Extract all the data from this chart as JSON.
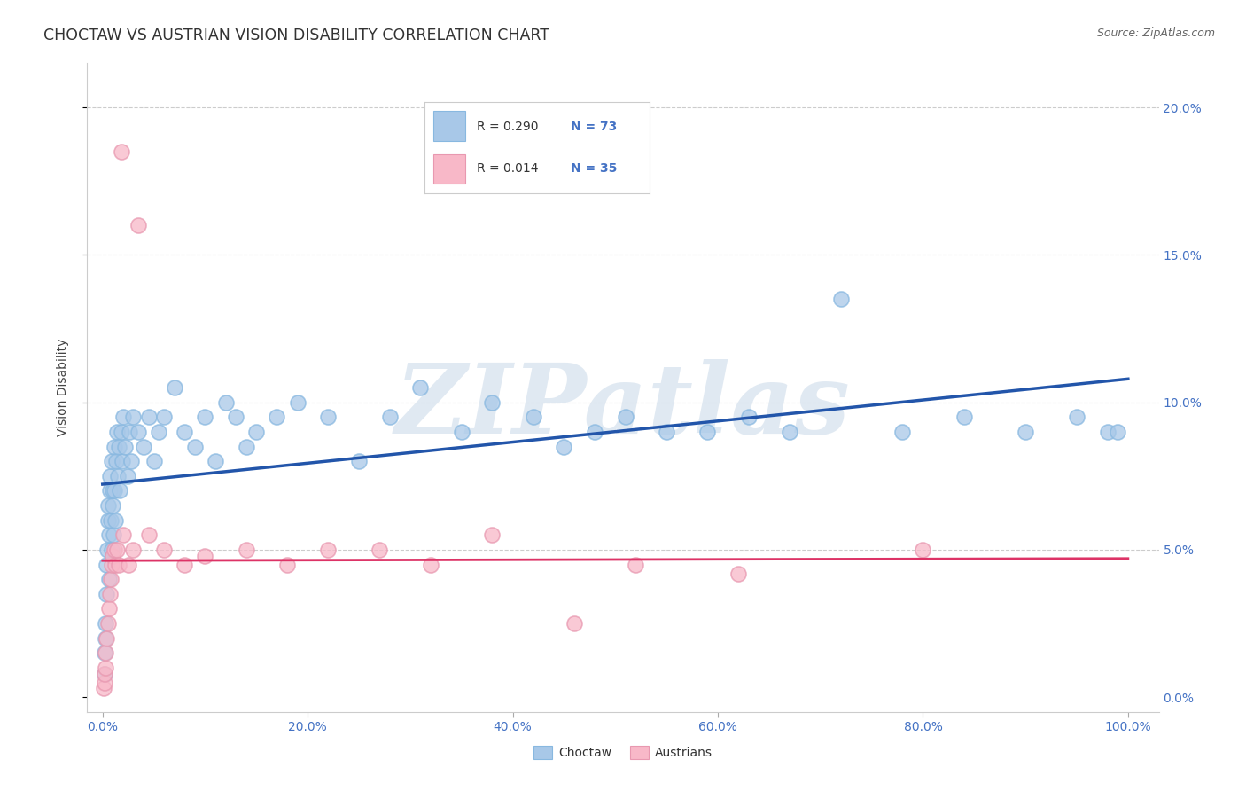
{
  "title": "CHOCTAW VS AUSTRIAN VISION DISABILITY CORRELATION CHART",
  "source": "Source: ZipAtlas.com",
  "ylabel": "Vision Disability",
  "legend_label1": "Choctaw",
  "legend_label2": "Austrians",
  "r1": 0.29,
  "n1": 73,
  "r2": 0.014,
  "n2": 35,
  "color1": "#a8c8e8",
  "color2": "#f8b8c8",
  "line_color1": "#2255aa",
  "line_color2": "#dd3366",
  "watermark": "ZIPatlas",
  "choctaw_x": [
    0.15,
    0.2,
    0.25,
    0.3,
    0.35,
    0.4,
    0.45,
    0.5,
    0.55,
    0.6,
    0.65,
    0.7,
    0.75,
    0.8,
    0.85,
    0.9,
    0.95,
    1.0,
    1.05,
    1.1,
    1.15,
    1.2,
    1.3,
    1.4,
    1.5,
    1.6,
    1.7,
    1.8,
    1.9,
    2.0,
    2.2,
    2.4,
    2.6,
    2.8,
    3.0,
    3.5,
    4.0,
    4.5,
    5.0,
    5.5,
    6.0,
    7.0,
    8.0,
    9.0,
    10.0,
    11.0,
    12.0,
    13.0,
    14.0,
    15.0,
    17.0,
    19.0,
    22.0,
    25.0,
    28.0,
    31.0,
    35.0,
    38.0,
    42.0,
    45.0,
    48.0,
    51.0,
    55.0,
    59.0,
    63.0,
    67.0,
    72.0,
    78.0,
    84.0,
    90.0,
    95.0,
    98.0,
    99.0
  ],
  "choctaw_y": [
    0.8,
    1.5,
    2.0,
    2.5,
    3.5,
    4.5,
    5.0,
    6.0,
    6.5,
    5.5,
    4.0,
    7.0,
    7.5,
    6.0,
    5.0,
    8.0,
    6.5,
    7.0,
    5.5,
    8.5,
    7.0,
    6.0,
    8.0,
    9.0,
    7.5,
    8.5,
    7.0,
    9.0,
    8.0,
    9.5,
    8.5,
    7.5,
    9.0,
    8.0,
    9.5,
    9.0,
    8.5,
    9.5,
    8.0,
    9.0,
    9.5,
    10.5,
    9.0,
    8.5,
    9.5,
    8.0,
    10.0,
    9.5,
    8.5,
    9.0,
    9.5,
    10.0,
    9.5,
    8.0,
    9.5,
    10.5,
    9.0,
    10.0,
    9.5,
    8.5,
    9.0,
    9.5,
    9.0,
    9.0,
    9.5,
    9.0,
    13.5,
    9.0,
    9.5,
    9.0,
    9.5,
    9.0,
    9.0
  ],
  "austrian_x": [
    0.1,
    0.15,
    0.2,
    0.25,
    0.3,
    0.4,
    0.5,
    0.6,
    0.7,
    0.8,
    0.9,
    1.0,
    1.1,
    1.2,
    1.4,
    1.6,
    1.8,
    2.0,
    2.5,
    3.0,
    3.5,
    4.5,
    6.0,
    8.0,
    10.0,
    14.0,
    18.0,
    22.0,
    27.0,
    32.0,
    38.0,
    46.0,
    52.0,
    62.0,
    80.0
  ],
  "austrian_y": [
    0.3,
    0.5,
    0.8,
    1.0,
    1.5,
    2.0,
    2.5,
    3.0,
    3.5,
    4.0,
    4.5,
    4.8,
    5.0,
    4.5,
    5.0,
    4.5,
    18.5,
    5.5,
    4.5,
    5.0,
    16.0,
    5.5,
    5.0,
    4.5,
    4.8,
    5.0,
    4.5,
    5.0,
    5.0,
    4.5,
    5.5,
    2.5,
    4.5,
    4.2,
    5.0
  ]
}
